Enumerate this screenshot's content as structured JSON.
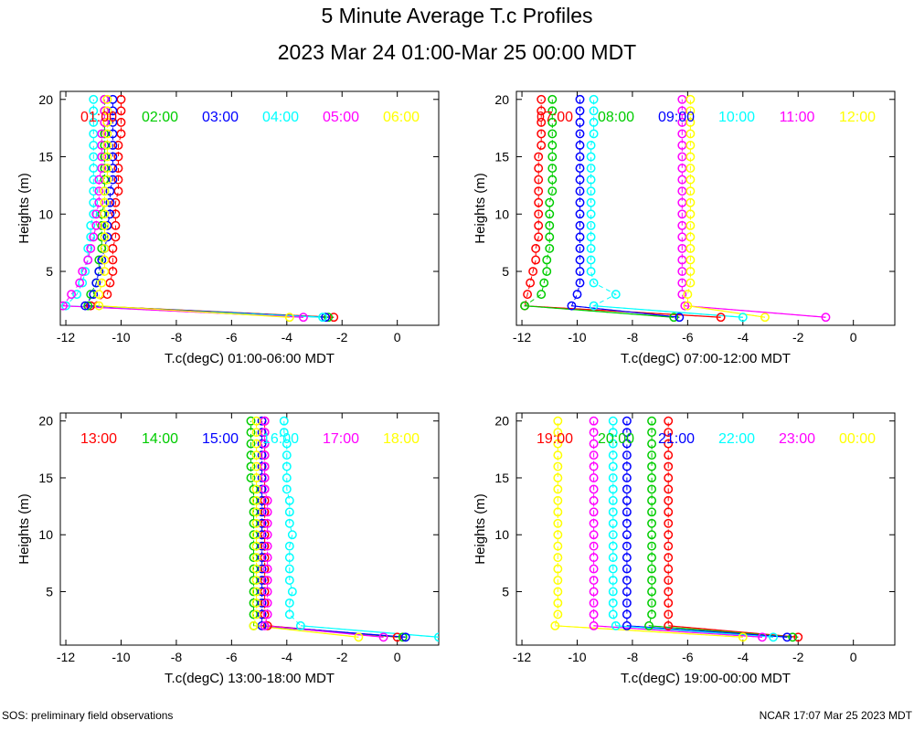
{
  "title": "5 Minute Average T.c Profiles",
  "subtitle": "2023 Mar 24 01:00-Mar 25 00:00 MDT",
  "footer_left": "SOS: preliminary field observations",
  "footer_right": "NCAR 17:07 Mar 25 2023 MDT",
  "colors": [
    "#ff0000",
    "#00cc00",
    "#0000ff",
    "#00ffff",
    "#ff00ff",
    "#ffff00"
  ],
  "chart_data": [
    {
      "type": "scatter",
      "xlabel": "T.c(degC) 01:00-06:00 MDT",
      "ylabel": "Heights (m)",
      "xlim": [
        -12.2,
        1.5
      ],
      "ylim": [
        0.3,
        20.7
      ],
      "xticks": [
        "-12",
        "-10",
        "-8",
        "-6",
        "-4",
        "-2",
        "0"
      ],
      "yticks": [
        "5",
        "10",
        "15",
        "20"
      ],
      "heights": [
        1,
        2,
        3,
        4,
        5,
        6,
        7,
        8,
        9,
        10,
        11,
        12,
        13,
        14,
        15,
        16,
        17,
        18,
        19,
        20
      ],
      "series": [
        {
          "name": "01:00",
          "values": [
            -2.3,
            -11.1,
            -10.5,
            -10.4,
            -10.3,
            -10.3,
            -10.3,
            -10.2,
            -10.2,
            -10.2,
            -10.2,
            -10.1,
            -10.1,
            -10.1,
            -10.1,
            -10.1,
            -10.0,
            -10.0,
            -10.0,
            -10.0
          ]
        },
        {
          "name": "02:00",
          "values": [
            -2.5,
            -11.2,
            -11.1,
            -10.9,
            -10.8,
            -10.8,
            -10.7,
            -10.7,
            -10.7,
            -10.7,
            -10.6,
            -10.6,
            -10.6,
            -10.6,
            -10.6,
            -10.6,
            -10.6,
            -10.6,
            -10.6,
            -10.6
          ]
        },
        {
          "name": "03:00",
          "values": [
            -2.6,
            -11.3,
            -11.0,
            -10.9,
            -10.8,
            -10.7,
            -10.6,
            -10.5,
            -10.5,
            -10.4,
            -10.4,
            -10.4,
            -10.3,
            -10.3,
            -10.3,
            -10.3,
            -10.3,
            -10.3,
            -10.3,
            -10.3
          ]
        },
        {
          "name": "04:00",
          "values": [
            -2.7,
            -12.0,
            -11.6,
            -11.4,
            -11.3,
            -11.2,
            -11.2,
            -11.1,
            -11.1,
            -11.0,
            -11.0,
            -11.0,
            -11.0,
            -11.0,
            -11.0,
            -11.0,
            -11.0,
            -11.0,
            -11.0,
            -11.0
          ]
        },
        {
          "name": "05:00",
          "values": [
            -3.4,
            -12.1,
            -11.8,
            -11.5,
            -11.4,
            -11.2,
            -11.1,
            -11.0,
            -10.9,
            -10.9,
            -10.8,
            -10.8,
            -10.8,
            -10.7,
            -10.7,
            -10.7,
            -10.7,
            -10.6,
            -10.6,
            -10.6
          ]
        },
        {
          "name": "06:00",
          "values": [
            -3.9,
            -10.8,
            -10.8,
            -10.7,
            -10.6,
            -10.6,
            -10.6,
            -10.6,
            -10.6,
            -10.6,
            -10.6,
            -10.6,
            -10.5,
            -10.5,
            -10.5,
            -10.5,
            -10.5,
            -10.5,
            -10.5,
            -10.5
          ]
        }
      ]
    },
    {
      "type": "scatter",
      "xlabel": "T.c(degC) 07:00-12:00 MDT",
      "ylabel": "Heights (m)",
      "xlim": [
        -12.2,
        1.5
      ],
      "ylim": [
        0.3,
        20.7
      ],
      "xticks": [
        "-12",
        "-10",
        "-8",
        "-6",
        "-4",
        "-2",
        "0"
      ],
      "yticks": [
        "5",
        "10",
        "15",
        "20"
      ],
      "heights": [
        1,
        2,
        3,
        4,
        5,
        6,
        7,
        8,
        9,
        10,
        11,
        12,
        13,
        14,
        15,
        16,
        17,
        18,
        19,
        20
      ],
      "series": [
        {
          "name": "07:00",
          "values": [
            -4.8,
            -11.9,
            -11.8,
            -11.7,
            -11.6,
            -11.5,
            -11.5,
            -11.4,
            -11.4,
            -11.4,
            -11.4,
            -11.4,
            -11.4,
            -11.4,
            -11.4,
            -11.3,
            -11.3,
            -11.3,
            -11.3,
            -11.3
          ]
        },
        {
          "name": "08:00",
          "values": [
            -6.5,
            -11.9,
            -11.3,
            -11.2,
            -11.1,
            -11.1,
            -11.0,
            -11.0,
            -11.0,
            -11.0,
            -11.0,
            -10.9,
            -10.9,
            -10.9,
            -10.9,
            -10.9,
            -10.9,
            -10.9,
            -10.9,
            -10.9
          ]
        },
        {
          "name": "09:00",
          "values": [
            -6.3,
            -10.2,
            -10.0,
            -9.9,
            -9.9,
            -9.9,
            -9.9,
            -9.9,
            -9.9,
            -9.9,
            -9.9,
            -9.9,
            -9.9,
            -9.9,
            -9.9,
            -9.9,
            -9.9,
            -9.9,
            -9.9,
            -9.9
          ]
        },
        {
          "name": "10:00",
          "values": [
            -4.0,
            -9.4,
            -8.6,
            -9.4,
            -9.5,
            -9.5,
            -9.5,
            -9.5,
            -9.5,
            -9.5,
            -9.5,
            -9.5,
            -9.5,
            -9.5,
            -9.5,
            -9.5,
            -9.4,
            -9.4,
            -9.4,
            -9.4
          ]
        },
        {
          "name": "11:00",
          "values": [
            -1.0,
            -6.1,
            -6.2,
            -6.2,
            -6.2,
            -6.2,
            -6.2,
            -6.2,
            -6.2,
            -6.2,
            -6.2,
            -6.2,
            -6.2,
            -6.2,
            -6.2,
            -6.2,
            -6.2,
            -6.2,
            -6.2,
            -6.2
          ]
        },
        {
          "name": "12:00",
          "values": [
            -3.2,
            -6.0,
            -6.0,
            -5.9,
            -5.9,
            -5.9,
            -5.9,
            -5.9,
            -5.9,
            -5.9,
            -5.9,
            -5.9,
            -5.9,
            -5.9,
            -5.9,
            -5.9,
            -5.9,
            -5.9,
            -5.9,
            -5.9
          ]
        }
      ]
    },
    {
      "type": "scatter",
      "xlabel": "T.c(degC) 13:00-18:00 MDT",
      "ylabel": "Heights (m)",
      "xlim": [
        -12.2,
        1.5
      ],
      "ylim": [
        0.3,
        20.7
      ],
      "xticks": [
        "-12",
        "-10",
        "-8",
        "-6",
        "-4",
        "-2",
        "0"
      ],
      "yticks": [
        "5",
        "10",
        "15",
        "20"
      ],
      "heights": [
        1,
        2,
        3,
        4,
        5,
        6,
        7,
        8,
        9,
        10,
        11,
        12,
        13,
        14,
        15,
        16,
        17,
        18,
        19,
        20
      ],
      "series": [
        {
          "name": "13:00",
          "values": [
            0.0,
            -4.7,
            -4.8,
            -4.8,
            -4.8,
            -4.8,
            -4.8,
            -4.8,
            -4.8,
            -4.8,
            -4.8,
            -4.8,
            -4.8,
            -4.8,
            -4.8,
            -4.8,
            -4.8,
            -4.8,
            -4.8,
            -4.8
          ]
        },
        {
          "name": "14:00",
          "values": [
            0.2,
            -5.2,
            -5.2,
            -5.2,
            -5.2,
            -5.2,
            -5.2,
            -5.2,
            -5.2,
            -5.2,
            -5.2,
            -5.2,
            -5.2,
            -5.2,
            -5.3,
            -5.3,
            -5.3,
            -5.3,
            -5.3,
            -5.3
          ]
        },
        {
          "name": "15:00",
          "values": [
            0.3,
            -4.9,
            -4.9,
            -4.9,
            -4.9,
            -4.9,
            -4.9,
            -4.9,
            -4.9,
            -4.9,
            -4.9,
            -4.9,
            -4.9,
            -4.9,
            -4.9,
            -4.9,
            -4.9,
            -4.9,
            -4.9,
            -4.9
          ]
        },
        {
          "name": "16:00",
          "values": [
            1.5,
            -3.5,
            -3.9,
            -3.9,
            -3.8,
            -3.9,
            -3.9,
            -3.9,
            -3.9,
            -3.8,
            -3.9,
            -3.9,
            -3.9,
            -4.0,
            -4.0,
            -4.0,
            -4.0,
            -4.0,
            -4.1,
            -4.1
          ]
        },
        {
          "name": "17:00",
          "values": [
            -0.5,
            -4.8,
            -4.7,
            -4.7,
            -4.7,
            -4.7,
            -4.7,
            -4.7,
            -4.7,
            -4.7,
            -4.7,
            -4.7,
            -4.7,
            -4.8,
            -4.8,
            -4.8,
            -4.8,
            -4.8,
            -4.8,
            -4.8
          ]
        },
        {
          "name": "18:00",
          "values": [
            -1.4,
            -5.2,
            -5.1,
            -5.1,
            -5.1,
            -5.1,
            -5.1,
            -5.1,
            -5.1,
            -5.1,
            -5.1,
            -5.1,
            -5.1,
            -5.1,
            -5.1,
            -5.1,
            -5.1,
            -5.1,
            -5.1,
            -5.1
          ]
        }
      ]
    },
    {
      "type": "scatter",
      "xlabel": "T.c(degC) 19:00-00:00 MDT",
      "ylabel": "Heights (m)",
      "xlim": [
        -12.2,
        1.5
      ],
      "ylim": [
        0.3,
        20.7
      ],
      "xticks": [
        "-12",
        "-10",
        "-8",
        "-6",
        "-4",
        "-2",
        "0"
      ],
      "yticks": [
        "5",
        "10",
        "15",
        "20"
      ],
      "heights": [
        1,
        2,
        3,
        4,
        5,
        6,
        7,
        8,
        9,
        10,
        11,
        12,
        13,
        14,
        15,
        16,
        17,
        18,
        19,
        20
      ],
      "series": [
        {
          "name": "19:00",
          "values": [
            -2.0,
            -6.7,
            -6.7,
            -6.7,
            -6.7,
            -6.7,
            -6.7,
            -6.7,
            -6.7,
            -6.7,
            -6.7,
            -6.7,
            -6.7,
            -6.7,
            -6.7,
            -6.7,
            -6.7,
            -6.7,
            -6.7,
            -6.7
          ]
        },
        {
          "name": "20:00",
          "values": [
            -2.2,
            -7.4,
            -7.3,
            -7.3,
            -7.3,
            -7.3,
            -7.3,
            -7.3,
            -7.3,
            -7.3,
            -7.3,
            -7.3,
            -7.3,
            -7.3,
            -7.3,
            -7.3,
            -7.3,
            -7.3,
            -7.3,
            -7.3
          ]
        },
        {
          "name": "21:00",
          "values": [
            -2.4,
            -8.2,
            -8.2,
            -8.2,
            -8.2,
            -8.2,
            -8.2,
            -8.2,
            -8.2,
            -8.2,
            -8.2,
            -8.2,
            -8.2,
            -8.2,
            -8.2,
            -8.2,
            -8.2,
            -8.2,
            -8.2,
            -8.2
          ]
        },
        {
          "name": "22:00",
          "values": [
            -2.9,
            -8.6,
            -8.7,
            -8.7,
            -8.7,
            -8.7,
            -8.7,
            -8.7,
            -8.7,
            -8.7,
            -8.7,
            -8.7,
            -8.7,
            -8.7,
            -8.7,
            -8.7,
            -8.7,
            -8.7,
            -8.7,
            -8.7
          ]
        },
        {
          "name": "23:00",
          "values": [
            -3.3,
            -9.4,
            -9.4,
            -9.4,
            -9.4,
            -9.4,
            -9.4,
            -9.4,
            -9.4,
            -9.4,
            -9.4,
            -9.4,
            -9.4,
            -9.4,
            -9.4,
            -9.4,
            -9.4,
            -9.4,
            -9.4,
            -9.4
          ]
        },
        {
          "name": "00:00",
          "values": [
            -4.0,
            -10.8,
            -10.7,
            -10.7,
            -10.7,
            -10.7,
            -10.7,
            -10.7,
            -10.7,
            -10.7,
            -10.7,
            -10.7,
            -10.7,
            -10.7,
            -10.7,
            -10.7,
            -10.7,
            -10.7,
            -10.7,
            -10.7
          ]
        }
      ]
    }
  ]
}
